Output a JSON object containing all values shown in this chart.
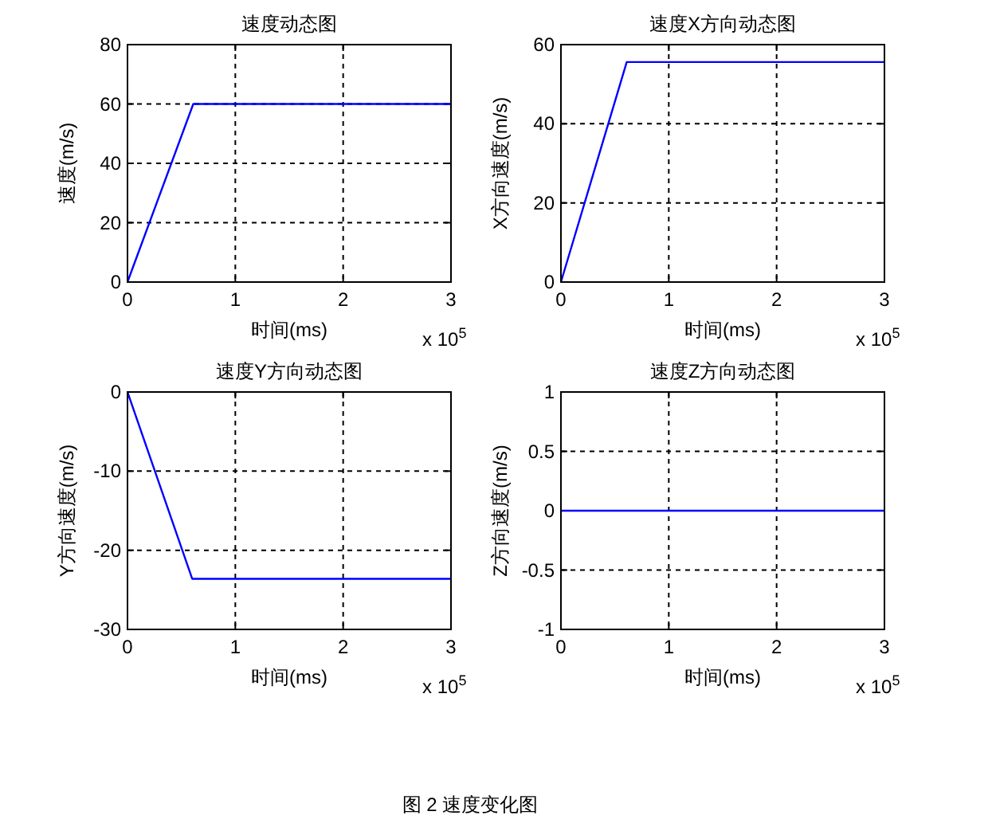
{
  "chart_data": [
    {
      "type": "line",
      "title": "速度动态图",
      "xlabel": "时间(ms)",
      "ylabel": "速度(m/s)",
      "x": [
        0,
        0.61,
        3
      ],
      "series": [
        {
          "color": "#0000ff",
          "values": [
            0,
            60,
            60
          ]
        }
      ],
      "xlim": [
        0,
        3
      ],
      "ylim": [
        0,
        80
      ],
      "xticks": [
        0,
        1,
        2,
        3
      ],
      "yticks": [
        0,
        20,
        40,
        60,
        80
      ],
      "grid": true,
      "annotations": [
        "x 10$^{5}$"
      ]
    },
    {
      "type": "line",
      "title": "速度X方向动态图",
      "xlabel": "时间(ms)",
      "ylabel": "X方向速度(m/s)",
      "x": [
        0,
        0.61,
        3
      ],
      "series": [
        {
          "color": "#0000ff",
          "values": [
            0,
            55.6,
            55.6
          ]
        }
      ],
      "xlim": [
        0,
        3
      ],
      "ylim": [
        0,
        60
      ],
      "xticks": [
        0,
        1,
        2,
        3
      ],
      "yticks": [
        0,
        20,
        40,
        60
      ],
      "grid": true,
      "annotations": [
        "x 10$^{5}$"
      ]
    },
    {
      "type": "line",
      "title": "速度Y方向动态图",
      "xlabel": "时间(ms)",
      "ylabel": "Y方向速度(m/s)",
      "x": [
        0,
        0.6,
        3
      ],
      "series": [
        {
          "color": "#0000ff",
          "values": [
            0,
            -23.6,
            -23.6
          ]
        }
      ],
      "xlim": [
        0,
        3
      ],
      "ylim": [
        -30,
        0
      ],
      "xticks": [
        0,
        1,
        2,
        3
      ],
      "yticks": [
        -30,
        -20,
        -10,
        0
      ],
      "grid": true,
      "annotations": [
        "x 10$^{5}$"
      ]
    },
    {
      "type": "line",
      "title": "速度Z方向动态图",
      "xlabel": "时间(ms)",
      "ylabel": "Z方向速度(m/s)",
      "x": [
        0,
        3
      ],
      "series": [
        {
          "color": "#0000ff",
          "values": [
            0,
            0
          ]
        }
      ],
      "xlim": [
        0,
        3
      ],
      "ylim": [
        -1,
        1
      ],
      "xticks": [
        0,
        1,
        2,
        3
      ],
      "yticks": [
        -1,
        -0.5,
        0,
        0.5,
        1
      ],
      "grid": true,
      "annotations": [
        "x 10$^{5}$",
        "图 2  速度变化图"
      ]
    }
  ]
}
